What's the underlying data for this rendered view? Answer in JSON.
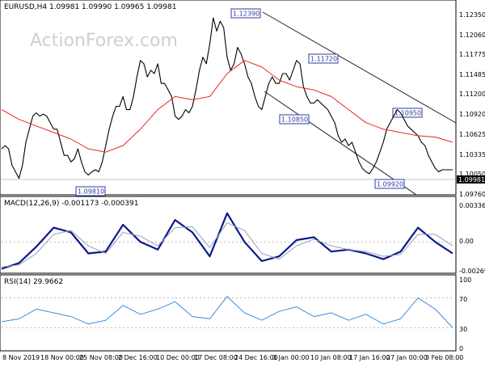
{
  "chart_data": [
    {
      "type": "line",
      "title": "EURUSD,H4  1.09981 1.09990 1.09965 1.09981",
      "watermark": "ActionForex.com",
      "ylim": [
        1.0961,
        1.125
      ],
      "y_ticks": [
        "1.12350",
        "1.12060",
        "1.11775",
        "1.11485",
        "1.11200",
        "1.10920",
        "1.10625",
        "1.10335",
        "1.10050",
        "1.09760"
      ],
      "current_price": "1.09981",
      "series": [
        {
          "name": "price",
          "color": "#000000",
          "x": [
            0,
            2,
            4,
            6,
            8,
            10,
            12,
            14,
            16,
            18,
            20,
            22,
            24,
            26,
            28,
            30,
            32,
            34,
            36,
            38,
            40,
            42,
            44,
            46,
            48,
            50,
            52,
            54,
            56,
            58,
            60,
            62,
            64,
            66,
            68,
            70,
            72,
            74,
            76,
            78,
            80,
            82,
            84,
            86,
            88,
            90,
            92,
            94,
            96,
            98,
            100,
            102,
            104,
            106,
            108,
            110,
            112,
            114,
            116,
            118,
            120,
            122,
            124,
            126,
            128,
            130,
            132,
            134,
            136,
            138,
            140,
            142,
            144,
            146,
            148,
            150,
            152,
            154,
            156,
            158,
            160,
            162,
            164,
            166,
            168,
            170,
            172,
            174,
            176,
            178,
            180,
            182,
            184,
            186,
            188,
            190,
            192,
            194,
            196,
            198,
            200,
            202,
            204,
            206,
            208,
            210,
            212,
            214,
            216,
            218,
            220,
            222,
            224,
            226,
            228,
            230,
            232,
            234,
            236,
            238,
            240,
            242,
            244,
            246,
            248,
            250,
            252,
            254,
            256,
            258,
            260
          ],
          "values": [
            1.103,
            1.1035,
            1.103,
            1.1005,
            1.0995,
            1.0985,
            1.1005,
            1.104,
            1.106,
            1.108,
            1.1085,
            1.108,
            1.1083,
            1.108,
            1.107,
            1.106,
            1.106,
            1.104,
            1.102,
            1.102,
            1.101,
            1.1015,
            1.103,
            1.101,
            1.0995,
            1.099,
            1.0995,
            1.0998,
            1.0995,
            1.101,
            1.1035,
            1.106,
            1.108,
            1.1095,
            1.1095,
            1.111,
            1.109,
            1.109,
            1.111,
            1.114,
            1.1165,
            1.116,
            1.114,
            1.115,
            1.1145,
            1.116,
            1.113,
            1.113,
            1.112,
            1.111,
            1.108,
            1.1075,
            1.108,
            1.109,
            1.1085,
            1.1095,
            1.112,
            1.115,
            1.117,
            1.116,
            1.119,
            1.123,
            1.121,
            1.1225,
            1.1215,
            1.117,
            1.115,
            1.116,
            1.1185,
            1.1175,
            1.116,
            1.114,
            1.113,
            1.111,
            1.1095,
            1.109,
            1.111,
            1.113,
            1.114,
            1.113,
            1.113,
            1.1145,
            1.1145,
            1.1135,
            1.115,
            1.1165,
            1.116,
            1.1125,
            1.111,
            1.11,
            1.11,
            1.1105,
            1.11,
            1.1095,
            1.109,
            1.108,
            1.107,
            1.105,
            1.104,
            1.1045,
            1.1035,
            1.104,
            1.1025,
            1.101,
            1.1,
            1.0995,
            1.0992,
            1.1,
            1.101,
            1.1025,
            1.104,
            1.106,
            1.107,
            1.108,
            1.109,
            1.1085,
            1.1075,
            1.1065,
            1.106,
            1.1055,
            1.105,
            1.104,
            1.1035,
            1.102,
            1.101,
            1.1,
            1.0995,
            1.0998,
            1.0998,
            1.0998,
            1.0998
          ]
        },
        {
          "name": "moving average",
          "color": "#e8261e",
          "x": [
            0,
            10,
            20,
            30,
            40,
            50,
            60,
            70,
            80,
            90,
            100,
            110,
            120,
            130,
            140,
            150,
            160,
            170,
            180,
            190,
            200,
            210,
            220,
            230,
            240,
            250,
            260
          ],
          "values": [
            1.109,
            1.1075,
            1.1065,
            1.1055,
            1.1045,
            1.103,
            1.1025,
            1.1035,
            1.106,
            1.109,
            1.111,
            1.1105,
            1.111,
            1.1145,
            1.1165,
            1.1155,
            1.1135,
            1.1125,
            1.112,
            1.111,
            1.109,
            1.107,
            1.106,
            1.1055,
            1.105,
            1.1048,
            1.104
          ]
        }
      ],
      "annotations": [
        "1.12390",
        "1.11720",
        "1.10850",
        "1.10950",
        "1.09810",
        "1.09920"
      ]
    },
    {
      "type": "line",
      "title": "MACD(12,26,9) -0.001173 -0.000391",
      "ylim": [
        -0.0031,
        0.004
      ],
      "y_ticks": [
        "0.003362",
        "0.00",
        "-0.002691"
      ],
      "series": [
        {
          "name": "MACD line",
          "color": "#0a1a8c",
          "x": [
            0,
            10,
            20,
            30,
            40,
            50,
            60,
            70,
            80,
            90,
            100,
            110,
            120,
            130,
            140,
            150,
            160,
            170,
            180,
            190,
            200,
            210,
            220,
            230,
            240,
            250,
            260
          ],
          "values": [
            -0.0028,
            -0.0022,
            -0.0005,
            0.0015,
            0.001,
            -0.0012,
            -0.001,
            0.0018,
            0.0,
            -0.0008,
            0.0023,
            0.001,
            -0.0015,
            0.003,
            0.0,
            -0.002,
            -0.0015,
            0.0002,
            0.0005,
            -0.001,
            -0.0008,
            -0.0012,
            -0.0018,
            -0.001,
            0.0015,
            0.0,
            -0.0012
          ]
        },
        {
          "name": "signal line",
          "color": "#9aa0b4",
          "x": [
            0,
            10,
            20,
            30,
            40,
            50,
            60,
            70,
            80,
            90,
            100,
            110,
            120,
            130,
            140,
            150,
            160,
            170,
            180,
            190,
            200,
            210,
            220,
            230,
            240,
            250,
            260
          ],
          "values": [
            -0.0026,
            -0.0024,
            -0.0012,
            0.0008,
            0.0012,
            -0.0004,
            -0.0012,
            0.001,
            0.0006,
            -0.0004,
            0.0015,
            0.0016,
            -0.0006,
            0.002,
            0.0012,
            -0.0012,
            -0.0018,
            -0.0004,
            0.0003,
            -0.0004,
            -0.0008,
            -0.001,
            -0.0015,
            -0.0013,
            0.0008,
            0.0008,
            -0.0004
          ]
        }
      ]
    },
    {
      "type": "line",
      "title": "RSI(14) 29.9662",
      "ylim": [
        0,
        100
      ],
      "y_ticks": [
        "100",
        "70",
        "30",
        "0"
      ],
      "levels": [
        30,
        70
      ],
      "series": [
        {
          "name": "RSI",
          "color": "#3a8fe0",
          "x": [
            0,
            10,
            20,
            30,
            40,
            50,
            60,
            70,
            80,
            90,
            100,
            110,
            120,
            130,
            140,
            150,
            160,
            170,
            180,
            190,
            200,
            210,
            220,
            230,
            240,
            250,
            260
          ],
          "values": [
            38,
            42,
            55,
            50,
            45,
            35,
            40,
            60,
            48,
            55,
            65,
            45,
            42,
            72,
            50,
            40,
            52,
            58,
            45,
            50,
            40,
            48,
            35,
            42,
            70,
            55,
            30
          ]
        }
      ],
      "x_tick_labels": [
        "8 Nov 2019",
        "18 Nov 00:00",
        "25 Nov 08:00",
        "2 Dec 16:00",
        "10 Dec 00:00",
        "17 Dec 08:00",
        "24 Dec 16:00",
        "3 Jan 00:00",
        "10 Jan 08:00",
        "17 Jan 16:00",
        "27 Jan 00:00",
        "3 Feb 08:00"
      ]
    }
  ]
}
